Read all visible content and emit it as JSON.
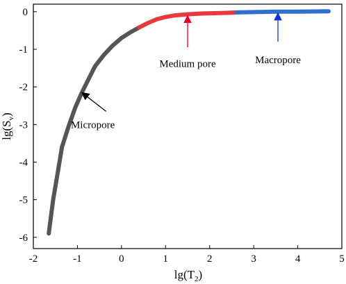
{
  "chart_data": {
    "type": "line",
    "xlabel": {
      "base": "lg(T",
      "sub": "2",
      "tail": ")"
    },
    "ylabel": {
      "base": "lg(S",
      "sub": "v",
      "tail": ")"
    },
    "xlim": [
      -2,
      5
    ],
    "ylim": [
      -6.3,
      0.2
    ],
    "xticks": [
      -2,
      -1,
      0,
      1,
      2,
      3,
      4,
      5
    ],
    "yticks": [
      0,
      -1,
      -2,
      -3,
      -4,
      -5,
      -6
    ],
    "grid": false,
    "series": [
      {
        "name": "Micropore",
        "color": "#555555",
        "points": [
          [
            -1.65,
            -5.9
          ],
          [
            -1.55,
            -5.0
          ],
          [
            -1.45,
            -4.3
          ],
          [
            -1.35,
            -3.6
          ],
          [
            -1.2,
            -3.05
          ],
          [
            -1.05,
            -2.55
          ],
          [
            -0.9,
            -2.15
          ],
          [
            -0.75,
            -1.8
          ],
          [
            -0.6,
            -1.45
          ],
          [
            -0.4,
            -1.15
          ],
          [
            -0.2,
            -0.9
          ],
          [
            0.0,
            -0.7
          ],
          [
            0.2,
            -0.55
          ],
          [
            0.4,
            -0.42
          ]
        ]
      },
      {
        "name": "Medium pore",
        "color": "#e83a3a",
        "points": [
          [
            0.4,
            -0.42
          ],
          [
            0.6,
            -0.3
          ],
          [
            0.8,
            -0.2
          ],
          [
            1.0,
            -0.14
          ],
          [
            1.2,
            -0.1
          ],
          [
            1.5,
            -0.07
          ],
          [
            1.8,
            -0.05
          ],
          [
            2.1,
            -0.04
          ],
          [
            2.4,
            -0.03
          ],
          [
            2.6,
            -0.02
          ]
        ]
      },
      {
        "name": "Macropore",
        "color": "#2e6fd1",
        "points": [
          [
            2.6,
            -0.02
          ],
          [
            3.0,
            -0.01
          ],
          [
            3.5,
            0.0
          ],
          [
            4.0,
            0.0
          ],
          [
            4.7,
            0.01
          ]
        ]
      }
    ],
    "annotations": [
      {
        "id": "micro",
        "text": "Micropore",
        "color": "#000000",
        "arrow_to": [
          -0.9,
          -2.15
        ],
        "arrow_from": [
          -0.35,
          -2.65
        ],
        "label_at": [
          -0.65,
          -3.0
        ]
      },
      {
        "id": "medium",
        "text": "Medium pore",
        "color": "#e8002a",
        "arrow_to": [
          1.5,
          -0.07
        ],
        "arrow_from": [
          1.5,
          -0.95
        ],
        "label_at": [
          1.5,
          -1.38
        ]
      },
      {
        "id": "macro",
        "text": "Macropore",
        "color": "#1a2ee0",
        "arrow_to": [
          3.55,
          0.0
        ],
        "arrow_from": [
          3.55,
          -0.8
        ],
        "label_at": [
          3.55,
          -1.28
        ]
      }
    ]
  }
}
